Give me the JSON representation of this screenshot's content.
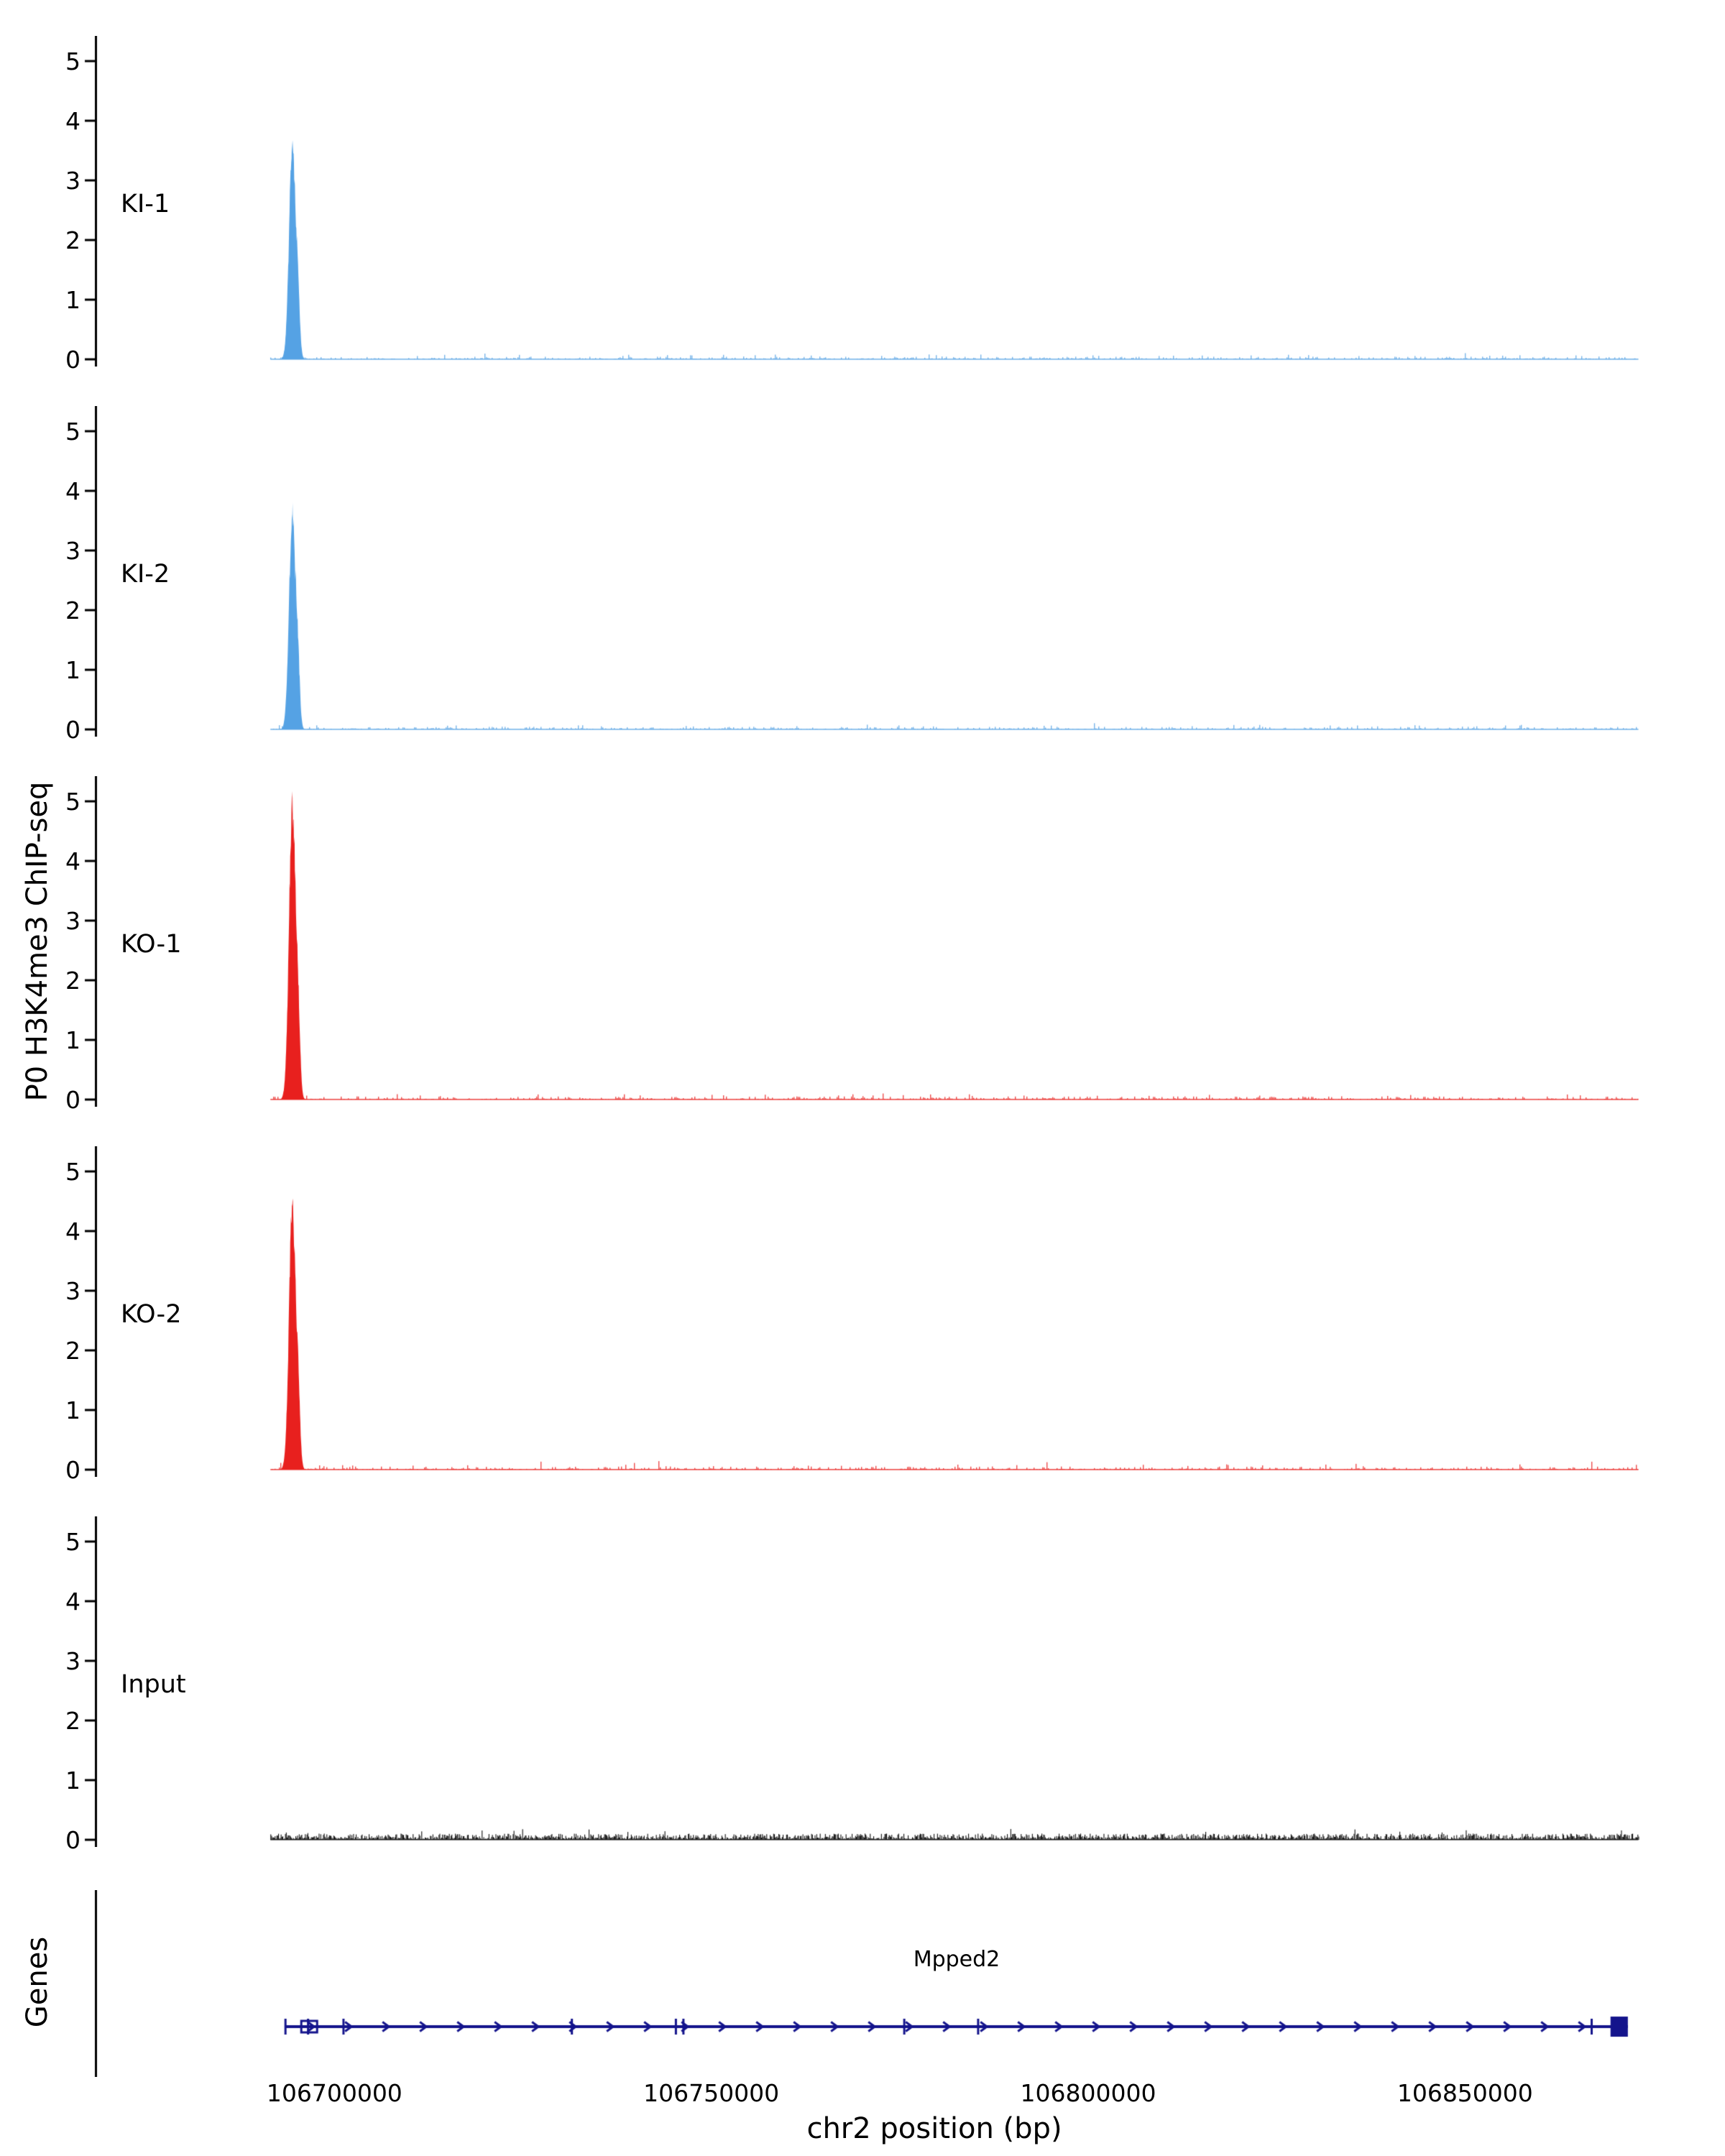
{
  "chart_data": {
    "type": "area",
    "subtype": "genome-browser-coverage-tracks",
    "title": "",
    "ylabel": "P0 H3K4me3 ChIP-seq",
    "xlabel": "chr2 position (bp)",
    "x_view_bp": [
      106668500,
      106874000
    ],
    "data_region_bp": [
      106691500,
      106873000
    ],
    "x_ticks_bp": [
      106700000,
      106750000,
      106800000,
      106850000
    ],
    "y_ticks": [
      0,
      1,
      2,
      3,
      4,
      5
    ],
    "ylim": [
      0,
      5.4
    ],
    "background_color": "#ffffff",
    "tracks": [
      {
        "label": "KI-1",
        "color": "#55a2e4",
        "noise_amp": 0.05,
        "peak": {
          "center_bp": 106694400,
          "height": 3.75,
          "sigma_bp": 420,
          "shoulder_offset_bp": 750,
          "shoulder_height_frac": 0.26,
          "shoulder_sigma_bp": 260
        }
      },
      {
        "label": "KI-2",
        "color": "#55a2e4",
        "noise_amp": 0.05,
        "peak": {
          "center_bp": 106694400,
          "height": 3.85,
          "sigma_bp": 420,
          "shoulder_offset_bp": 750,
          "shoulder_height_frac": 0.26,
          "shoulder_sigma_bp": 260
        }
      },
      {
        "label": "KO-1",
        "color": "#e8201e",
        "noise_amp": 0.06,
        "peak": {
          "center_bp": 106694400,
          "height": 5.25,
          "sigma_bp": 430,
          "shoulder_offset_bp": 780,
          "shoulder_height_frac": 0.24,
          "shoulder_sigma_bp": 270
        }
      },
      {
        "label": "KO-2",
        "color": "#e8201e",
        "noise_amp": 0.06,
        "peak": {
          "center_bp": 106694400,
          "height": 4.65,
          "sigma_bp": 430,
          "shoulder_offset_bp": 780,
          "shoulder_height_frac": 0.24,
          "shoulder_sigma_bp": 270
        }
      },
      {
        "label": "Input",
        "color": "#111111",
        "noise_amp": 0.08,
        "peak": null
      }
    ],
    "genes_panel": {
      "label": "Genes",
      "gene": {
        "name": "Mpped2",
        "chrom": "chr2",
        "start_bp": 106693500,
        "end_bp": 106871600,
        "strand": "+",
        "color": "#14148c",
        "exon_ticks_bp": [
          106693500,
          106696500,
          106701200,
          106731500,
          106745300,
          106746300,
          106775600,
          106785400,
          106866800
        ],
        "utr_box_bp": [
          106695600,
          106697700
        ],
        "end_exon_bp": [
          106869300,
          106871600
        ]
      }
    }
  }
}
